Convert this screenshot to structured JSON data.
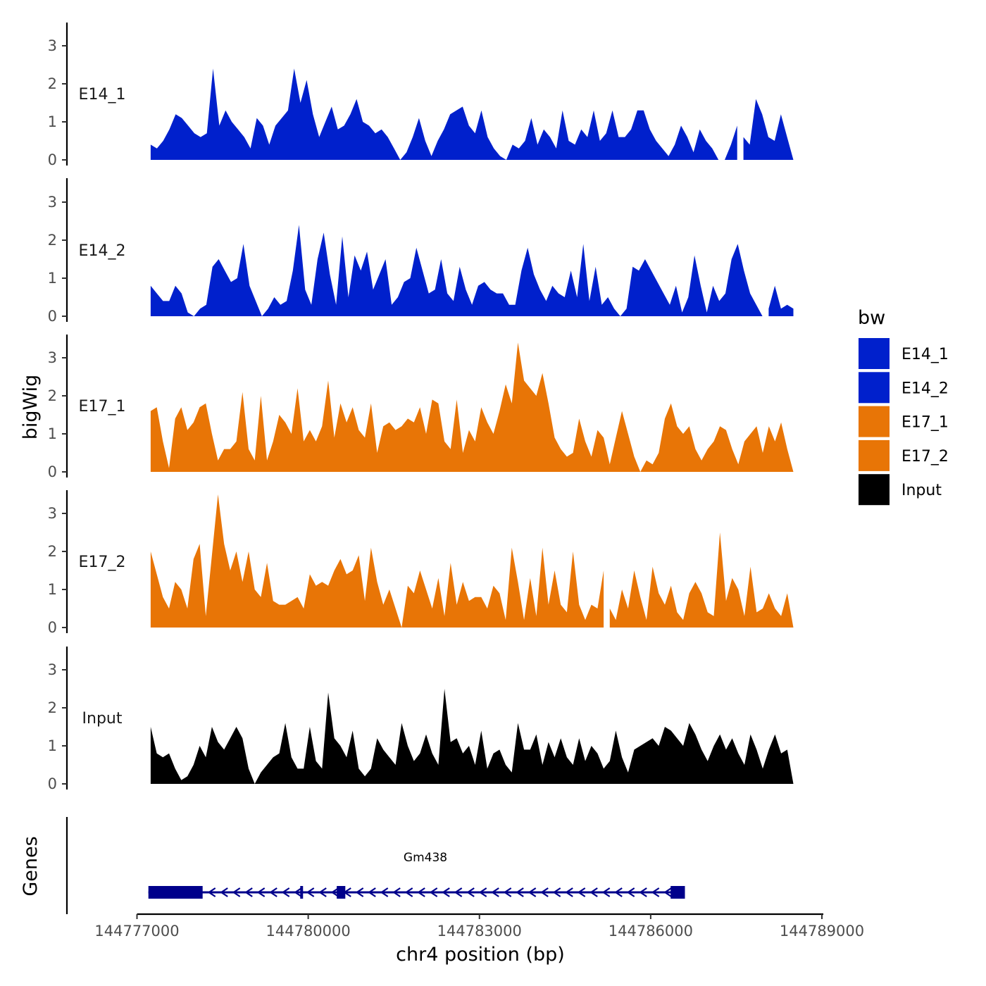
{
  "chart_data": {
    "type": "area",
    "y_axis_title": "bigWig",
    "x_axis_title": "chr4 position (bp)",
    "genes_axis_title": "Genes",
    "legend": {
      "title": "bw",
      "position": "right"
    },
    "x_range": [
      144777000,
      144789000
    ],
    "data_extent": [
      144777240,
      144788500
    ],
    "x_ticks": [
      144777000,
      144780000,
      144783000,
      144786000,
      144789000
    ],
    "x_tick_labels": [
      "144777000",
      "144780000",
      "144783000",
      "144786000",
      "144789000"
    ],
    "y_range": [
      0,
      3.6
    ],
    "y_ticks": [
      0,
      1,
      2,
      3
    ],
    "y_tick_labels": [
      "0",
      "1",
      "2",
      "3"
    ],
    "tracks": [
      {
        "name": "E14_1",
        "color": "#0020CC",
        "values": [
          0.4,
          0.3,
          0.5,
          0.8,
          1.2,
          1.1,
          0.9,
          0.7,
          0.6,
          0.7,
          2.4,
          0.9,
          1.3,
          1.0,
          0.8,
          0.6,
          0.3,
          1.1,
          0.9,
          0.4,
          0.9,
          1.1,
          1.3,
          2.4,
          1.5,
          2.1,
          1.2,
          0.6,
          1.0,
          1.4,
          0.8,
          0.9,
          1.2,
          1.6,
          1.0,
          0.9,
          0.7,
          0.8,
          0.6,
          0.3,
          0.0,
          0.2,
          0.6,
          1.1,
          0.5,
          0.1,
          0.5,
          0.8,
          1.2,
          1.3,
          1.4,
          0.9,
          0.7,
          1.3,
          0.6,
          0.3,
          0.1,
          0.0,
          0.4,
          0.3,
          0.5,
          1.1,
          0.4,
          0.8,
          0.6,
          0.3,
          1.3,
          0.5,
          0.4,
          0.8,
          0.6,
          1.3,
          0.5,
          0.7,
          1.3,
          0.6,
          0.6,
          0.8,
          1.3,
          1.3,
          0.8,
          0.5,
          0.3,
          0.1,
          0.4,
          0.9,
          0.6,
          0.2,
          0.8,
          0.5,
          0.3,
          0.0,
          0.0,
          0.4,
          0.9,
          0.6,
          0.4,
          1.6,
          1.2,
          0.6,
          0.5,
          1.2,
          0.6,
          0.0
        ],
        "gap_start_index": 94,
        "gap_end_index": 95
      },
      {
        "name": "E14_2",
        "color": "#0020CC",
        "values": [
          0.8,
          0.6,
          0.4,
          0.4,
          0.8,
          0.6,
          0.1,
          0.0,
          0.2,
          0.3,
          1.3,
          1.5,
          1.2,
          0.9,
          1.0,
          1.9,
          0.8,
          0.4,
          0.0,
          0.2,
          0.5,
          0.3,
          0.4,
          1.2,
          2.4,
          0.7,
          0.3,
          1.5,
          2.2,
          1.1,
          0.3,
          2.1,
          0.5,
          1.6,
          1.2,
          1.7,
          0.7,
          1.1,
          1.5,
          0.3,
          0.5,
          0.9,
          1.0,
          1.8,
          1.2,
          0.6,
          0.7,
          1.5,
          0.6,
          0.4,
          1.3,
          0.7,
          0.3,
          0.8,
          0.9,
          0.7,
          0.6,
          0.6,
          0.3,
          0.3,
          1.2,
          1.8,
          1.1,
          0.7,
          0.4,
          0.8,
          0.6,
          0.5,
          1.2,
          0.5,
          1.9,
          0.4,
          1.3,
          0.3,
          0.5,
          0.2,
          0.0,
          0.2,
          1.3,
          1.2,
          1.5,
          1.2,
          0.9,
          0.6,
          0.3,
          0.8,
          0.1,
          0.5,
          1.6,
          0.8,
          0.1,
          0.8,
          0.4,
          0.6,
          1.5,
          1.9,
          1.2,
          0.6,
          0.3,
          0.0,
          0.2,
          0.8,
          0.2,
          0.3,
          0.2
        ],
        "gap_start_index": 99,
        "gap_end_index": 100
      },
      {
        "name": "E17_1",
        "color": "#E87506",
        "values": [
          1.6,
          1.7,
          0.8,
          0.1,
          1.4,
          1.7,
          1.1,
          1.3,
          1.7,
          1.8,
          1.0,
          0.3,
          0.6,
          0.6,
          0.8,
          2.1,
          0.6,
          0.3,
          2.0,
          0.3,
          0.8,
          1.5,
          1.3,
          1.0,
          2.2,
          0.8,
          1.1,
          0.8,
          1.2,
          2.4,
          0.9,
          1.8,
          1.3,
          1.7,
          1.1,
          0.9,
          1.8,
          0.5,
          1.2,
          1.3,
          1.1,
          1.2,
          1.4,
          1.3,
          1.7,
          1.0,
          1.9,
          1.8,
          0.8,
          0.6,
          1.9,
          0.5,
          1.1,
          0.8,
          1.7,
          1.3,
          1.0,
          1.6,
          2.3,
          1.8,
          3.4,
          2.4,
          2.2,
          2.0,
          2.6,
          1.8,
          0.9,
          0.6,
          0.4,
          0.5,
          1.4,
          0.8,
          0.4,
          1.1,
          0.9,
          0.2,
          0.9,
          1.6,
          1.0,
          0.4,
          0.0,
          0.3,
          0.2,
          0.5,
          1.4,
          1.8,
          1.2,
          1.0,
          1.2,
          0.6,
          0.3,
          0.6,
          0.8,
          1.2,
          1.1,
          0.6,
          0.2,
          0.8,
          1.0,
          1.2,
          0.5,
          1.2,
          0.8,
          1.3,
          0.6,
          0.0
        ]
      },
      {
        "name": "E17_2",
        "color": "#E87506",
        "values": [
          2.0,
          1.4,
          0.8,
          0.5,
          1.2,
          1.0,
          0.5,
          1.8,
          2.2,
          0.3,
          1.9,
          3.5,
          2.2,
          1.5,
          2.0,
          1.2,
          2.0,
          1.0,
          0.8,
          1.7,
          0.7,
          0.6,
          0.6,
          0.7,
          0.8,
          0.5,
          1.4,
          1.1,
          1.2,
          1.1,
          1.5,
          1.8,
          1.4,
          1.5,
          1.9,
          0.7,
          2.1,
          1.2,
          0.6,
          1.0,
          0.5,
          0.0,
          1.1,
          0.9,
          1.5,
          1.0,
          0.5,
          1.3,
          0.3,
          1.7,
          0.6,
          1.2,
          0.7,
          0.8,
          0.8,
          0.5,
          1.1,
          0.9,
          0.2,
          2.1,
          1.2,
          0.2,
          1.3,
          0.3,
          2.1,
          0.6,
          1.5,
          0.6,
          0.4,
          2.0,
          0.6,
          0.2,
          0.6,
          0.5,
          1.5,
          0.5,
          0.2,
          1.0,
          0.5,
          1.5,
          0.8,
          0.2,
          1.6,
          0.9,
          0.6,
          1.1,
          0.4,
          0.2,
          0.9,
          1.2,
          0.9,
          0.4,
          0.3,
          2.5,
          0.7,
          1.3,
          1.0,
          0.3,
          1.6,
          0.4,
          0.5,
          0.9,
          0.5,
          0.3,
          0.9,
          0.0
        ],
        "gap_start_index": 74,
        "gap_end_index": 75
      },
      {
        "name": "Input",
        "color": "#000000",
        "values": [
          1.5,
          0.8,
          0.7,
          0.8,
          0.4,
          0.1,
          0.2,
          0.5,
          1.0,
          0.7,
          1.5,
          1.1,
          0.9,
          1.2,
          1.5,
          1.2,
          0.4,
          0.0,
          0.3,
          0.5,
          0.7,
          0.8,
          1.6,
          0.7,
          0.4,
          0.4,
          1.5,
          0.6,
          0.4,
          2.4,
          1.2,
          1.0,
          0.7,
          1.4,
          0.4,
          0.2,
          0.4,
          1.2,
          0.9,
          0.7,
          0.5,
          1.6,
          1.0,
          0.6,
          0.8,
          1.3,
          0.8,
          0.5,
          2.5,
          1.1,
          1.2,
          0.8,
          1.0,
          0.5,
          1.4,
          0.4,
          0.8,
          0.9,
          0.5,
          0.3,
          1.6,
          0.9,
          0.9,
          1.3,
          0.5,
          1.1,
          0.7,
          1.2,
          0.7,
          0.5,
          1.2,
          0.6,
          1.0,
          0.8,
          0.4,
          0.6,
          1.4,
          0.7,
          0.3,
          0.9,
          1.0,
          1.1,
          1.2,
          1.0,
          1.5,
          1.4,
          1.2,
          1.0,
          1.6,
          1.3,
          0.9,
          0.6,
          1.0,
          1.3,
          0.9,
          1.2,
          0.8,
          0.5,
          1.3,
          0.9,
          0.4,
          0.9,
          1.3,
          0.8,
          0.9,
          0.0
        ]
      }
    ],
    "gene": {
      "name": "Gm438",
      "strand": "-",
      "start": 144777200,
      "end": 144786600,
      "exons": [
        [
          144777200,
          144778150
        ],
        [
          144779860,
          144779900
        ],
        [
          144780500,
          144780650
        ],
        [
          144786350,
          144786600
        ]
      ]
    },
    "legend_entries": [
      {
        "label": "E14_1",
        "color": "#0020CC"
      },
      {
        "label": "E14_2",
        "color": "#0020CC"
      },
      {
        "label": "E17_1",
        "color": "#E87506"
      },
      {
        "label": "E17_2",
        "color": "#E87506"
      },
      {
        "label": "Input",
        "color": "#000000"
      }
    ]
  }
}
